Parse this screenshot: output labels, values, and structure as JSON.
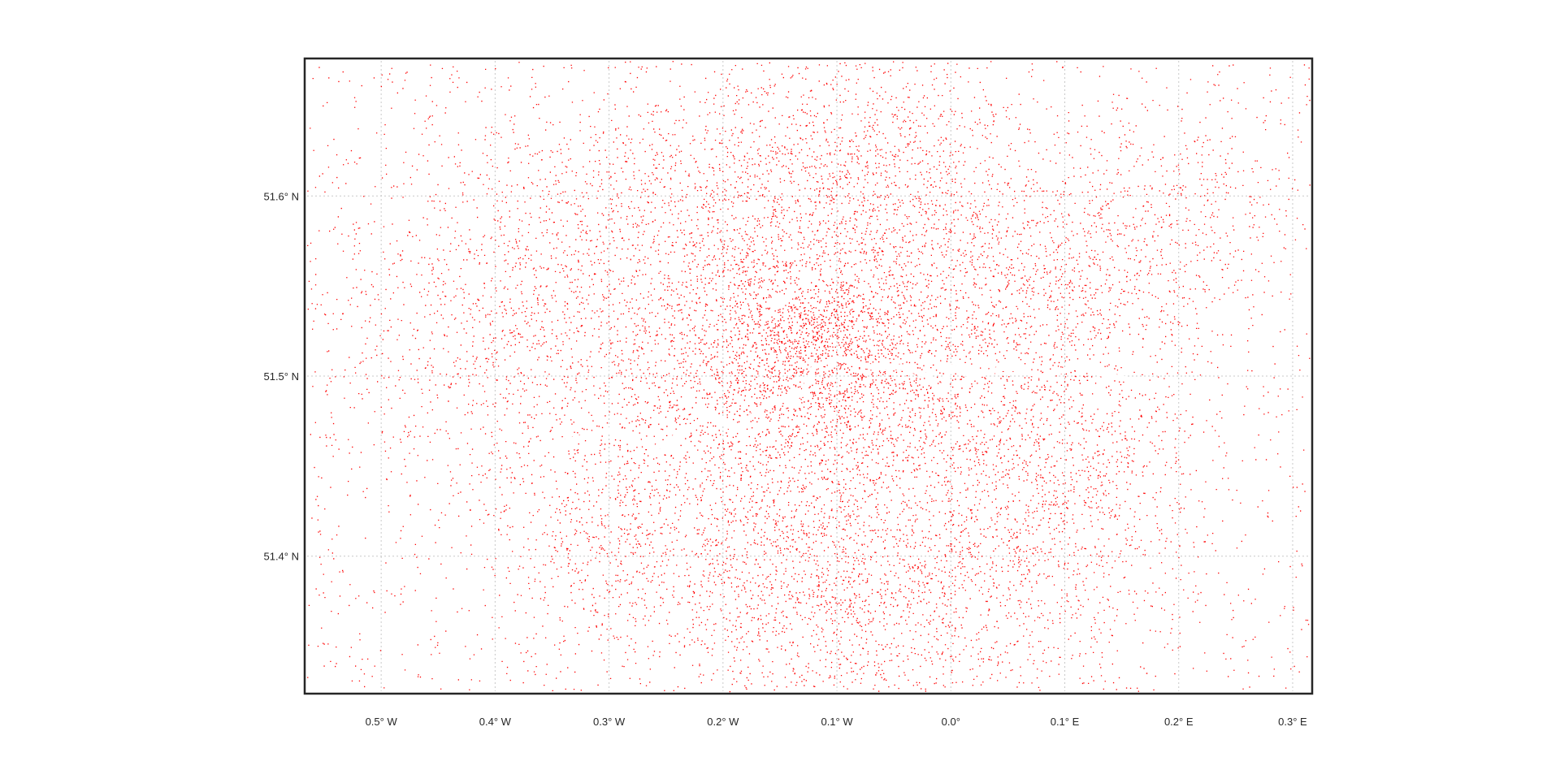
{
  "chart_data": {
    "type": "scatter",
    "title": "",
    "xlabel": "",
    "ylabel": "",
    "projection": "geographic",
    "grid": true,
    "marker_color": "#ff0000",
    "xlim": [
      -0.565,
      0.315
    ],
    "ylim": [
      51.325,
      51.675
    ],
    "x_ticks": [
      {
        "value": -0.5,
        "label": "0.5° W"
      },
      {
        "value": -0.4,
        "label": "0.4° W"
      },
      {
        "value": -0.3,
        "label": "0.3° W"
      },
      {
        "value": -0.2,
        "label": "0.2° W"
      },
      {
        "value": -0.1,
        "label": "0.1° W"
      },
      {
        "value": 0.0,
        "label": "0.0°"
      },
      {
        "value": 0.1,
        "label": "0.1° E"
      },
      {
        "value": 0.2,
        "label": "0.2° E"
      },
      {
        "value": 0.3,
        "label": "0.3° E"
      }
    ],
    "y_ticks": [
      {
        "value": 51.6,
        "label": "51.6° N"
      },
      {
        "value": 51.5,
        "label": "51.5° N"
      },
      {
        "value": 51.4,
        "label": "51.4° N"
      }
    ],
    "density_clusters": [
      {
        "lon": -0.12,
        "lat": 51.51,
        "spread_lon": 0.05,
        "spread_lat": 0.025,
        "weight": 9
      },
      {
        "lon": -0.1,
        "lat": 51.55,
        "spread_lon": 0.07,
        "spread_lat": 0.05,
        "weight": 8
      },
      {
        "lon": -0.2,
        "lat": 51.53,
        "spread_lon": 0.09,
        "spread_lat": 0.05,
        "weight": 8
      },
      {
        "lon": -0.32,
        "lat": 51.52,
        "spread_lon": 0.1,
        "spread_lat": 0.05,
        "weight": 6
      },
      {
        "lon": -0.42,
        "lat": 51.53,
        "spread_lon": 0.07,
        "spread_lat": 0.04,
        "weight": 4
      },
      {
        "lon": -0.1,
        "lat": 51.44,
        "spread_lon": 0.09,
        "spread_lat": 0.05,
        "weight": 8
      },
      {
        "lon": -0.2,
        "lat": 51.42,
        "spread_lon": 0.08,
        "spread_lat": 0.04,
        "weight": 5
      },
      {
        "lon": -0.3,
        "lat": 51.4,
        "spread_lon": 0.06,
        "spread_lat": 0.04,
        "weight": 4
      },
      {
        "lon": 0.03,
        "lat": 51.55,
        "spread_lon": 0.07,
        "spread_lat": 0.04,
        "weight": 6
      },
      {
        "lon": 0.1,
        "lat": 51.56,
        "spread_lon": 0.07,
        "spread_lat": 0.04,
        "weight": 5
      },
      {
        "lon": 0.2,
        "lat": 51.58,
        "spread_lon": 0.05,
        "spread_lat": 0.03,
        "weight": 3
      },
      {
        "lon": 0.02,
        "lat": 51.45,
        "spread_lon": 0.07,
        "spread_lat": 0.04,
        "weight": 6
      },
      {
        "lon": 0.12,
        "lat": 51.46,
        "spread_lon": 0.06,
        "spread_lat": 0.03,
        "weight": 4
      },
      {
        "lon": 0.1,
        "lat": 51.39,
        "spread_lon": 0.05,
        "spread_lat": 0.03,
        "weight": 3
      },
      {
        "lon": -0.05,
        "lat": 51.62,
        "spread_lon": 0.05,
        "spread_lat": 0.04,
        "weight": 4
      },
      {
        "lon": -0.15,
        "lat": 51.62,
        "spread_lon": 0.06,
        "spread_lat": 0.03,
        "weight": 4
      },
      {
        "lon": -0.28,
        "lat": 51.6,
        "spread_lon": 0.07,
        "spread_lat": 0.03,
        "weight": 4
      },
      {
        "lon": -0.12,
        "lat": 51.37,
        "spread_lon": 0.06,
        "spread_lat": 0.03,
        "weight": 4
      },
      {
        "lon": -0.03,
        "lat": 51.37,
        "spread_lon": 0.05,
        "spread_lat": 0.03,
        "weight": 3
      }
    ]
  }
}
